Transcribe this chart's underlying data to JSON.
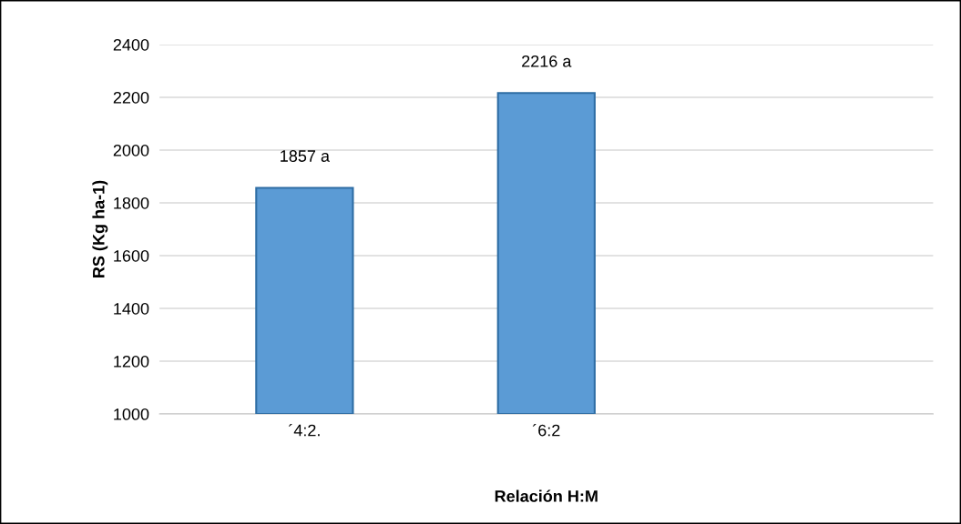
{
  "chart_data": {
    "type": "bar",
    "xlabel": "Relación H:M",
    "ylabel": "RS (Kg ha-1)",
    "categories": [
      "´4:2.",
      "´6:2"
    ],
    "series": [
      {
        "color": "#5b9bd5",
        "values": [
          1857,
          2216
        ]
      }
    ],
    "value_labels": [
      "1857 a",
      "2216 a"
    ],
    "ylim": [
      1000,
      2400
    ],
    "yticks": [
      1000,
      1200,
      1400,
      1600,
      1800,
      2000,
      2200,
      2400
    ],
    "grid": "y",
    "legend": false
  }
}
